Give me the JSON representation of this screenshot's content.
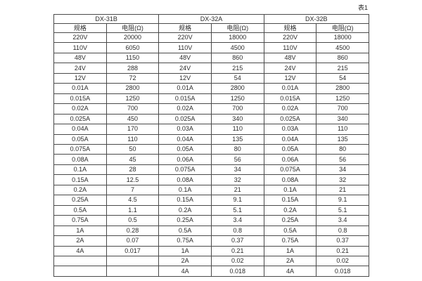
{
  "page": {
    "title": "表1"
  },
  "table": {
    "groups": [
      {
        "name": "DX-31B",
        "col_spec": "规格",
        "col_res": "电阻(Ω)"
      },
      {
        "name": "DX-32A",
        "col_spec": "规格",
        "col_res": "电阻(Ω)"
      },
      {
        "name": "DX-32B",
        "col_spec": "规格",
        "col_res": "电阻(Ω)"
      }
    ],
    "rows": [
      [
        "220V",
        "20000",
        "220V",
        "18000",
        "220V",
        "18000"
      ],
      [
        "110V",
        "6050",
        "110V",
        "4500",
        "110V",
        "4500"
      ],
      [
        "48V",
        "1150",
        "48V",
        "860",
        "48V",
        "860"
      ],
      [
        "24V",
        "288",
        "24V",
        "215",
        "24V",
        "215"
      ],
      [
        "12V",
        "72",
        "12V",
        "54",
        "12V",
        "54"
      ],
      [
        "0.01A",
        "2800",
        "0.01A",
        "2800",
        "0.01A",
        "2800"
      ],
      [
        "0.015A",
        "1250",
        "0.015A",
        "1250",
        "0.015A",
        "1250"
      ],
      [
        "0.02A",
        "700",
        "0.02A",
        "700",
        "0.02A",
        "700"
      ],
      [
        "0.025A",
        "450",
        "0.025A",
        "340",
        "0.025A",
        "340"
      ],
      [
        "0.04A",
        "170",
        "0.03A",
        "110",
        "0.03A",
        "110"
      ],
      [
        "0.05A",
        "110",
        "0.04A",
        "135",
        "0.04A",
        "135"
      ],
      [
        "0.075A",
        "50",
        "0.05A",
        "80",
        "0.05A",
        "80"
      ],
      [
        "0.08A",
        "45",
        "0.06A",
        "56",
        "0.06A",
        "56"
      ],
      [
        "0.1A",
        "28",
        "0.075A",
        "34",
        "0.075A",
        "34"
      ],
      [
        "0.15A",
        "12.5",
        "0.08A",
        "32",
        "0.08A",
        "32"
      ],
      [
        "0.2A",
        "7",
        "0.1A",
        "21",
        "0.1A",
        "21"
      ],
      [
        "0.25A",
        "4.5",
        "0.15A",
        "9.1",
        "0.15A",
        "9.1"
      ],
      [
        "0.5A",
        "1.1",
        "0.2A",
        "5.1",
        "0.2A",
        "5.1"
      ],
      [
        "0.75A",
        "0.5",
        "0.25A",
        "3.4",
        "0.25A",
        "3.4"
      ],
      [
        "1A",
        "0.28",
        "0.5A",
        "0.8",
        "0.5A",
        "0.8"
      ],
      [
        "2A",
        "0.07",
        "0.75A",
        "0.37",
        "0.75A",
        "0.37"
      ],
      [
        "4A",
        "0.017",
        "1A",
        "0.21",
        "1A",
        "0.21"
      ],
      [
        "",
        "",
        "2A",
        "0.02",
        "2A",
        "0.02"
      ],
      [
        "",
        "",
        "4A",
        "0.018",
        "4A",
        "0.018"
      ]
    ]
  }
}
